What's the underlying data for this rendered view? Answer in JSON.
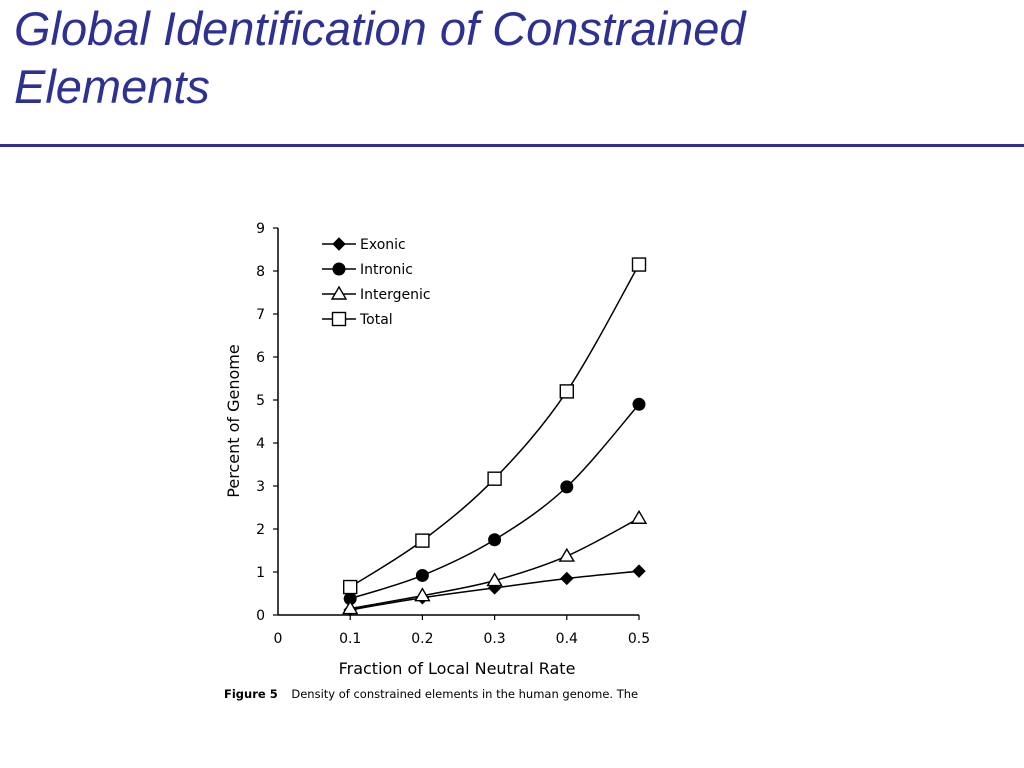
{
  "slide": {
    "title_line1": "Global Identification of Constrained",
    "title_line2": "Elements"
  },
  "colors": {
    "title": "#2e3192",
    "rule": "#2e3192",
    "ink": "#000000"
  },
  "chart_data": {
    "type": "line",
    "title": "",
    "xlabel": "Fraction of Local Neutral Rate",
    "ylabel": "Percent of Genome",
    "xlim": [
      0,
      0.5
    ],
    "ylim": [
      0,
      9
    ],
    "x_ticks": [
      0,
      0.1,
      0.2,
      0.3,
      0.4,
      0.5
    ],
    "x_tick_labels": [
      "0",
      "0.1",
      "0.2",
      "0.3",
      "0.4",
      "0.5"
    ],
    "y_ticks": [
      0,
      1,
      2,
      3,
      4,
      5,
      6,
      7,
      8,
      9
    ],
    "y_tick_labels": [
      "0",
      "1",
      "2",
      "3",
      "4",
      "5",
      "6",
      "7",
      "8",
      "9"
    ],
    "grid": false,
    "legend_position": "top-left",
    "x": [
      0.1,
      0.2,
      0.3,
      0.4,
      0.5
    ],
    "series": [
      {
        "name": "Exonic",
        "marker": "diamond",
        "values": [
          0.12,
          0.4,
          0.63,
          0.85,
          1.02
        ]
      },
      {
        "name": "Intronic",
        "marker": "circle",
        "values": [
          0.38,
          0.92,
          1.75,
          2.98,
          4.9
        ]
      },
      {
        "name": "Intergenic",
        "marker": "triangle",
        "values": [
          0.15,
          0.45,
          0.8,
          1.37,
          2.25
        ]
      },
      {
        "name": "Total",
        "marker": "square",
        "values": [
          0.65,
          1.73,
          3.17,
          5.2,
          8.15
        ]
      }
    ],
    "caption": {
      "label": "Figure 5",
      "text": "Density of constrained elements in the human genome. The"
    }
  }
}
